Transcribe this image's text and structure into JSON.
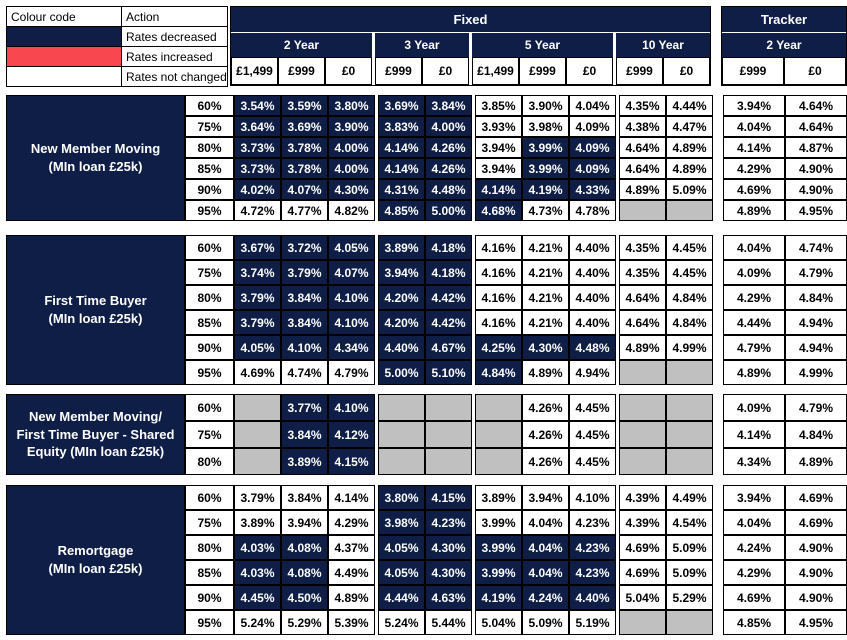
{
  "legend": {
    "col1_header": "Colour code",
    "col2_header": "Action",
    "rows": [
      {
        "swatch": "decreased",
        "label": "Rates decreased"
      },
      {
        "swatch": "increased",
        "label": "Rates increased"
      },
      {
        "swatch": "not_changed",
        "label": "Rates not changed"
      }
    ]
  },
  "colors": {
    "decreased": "#0E1E46",
    "increased": "#F8474F",
    "not_changed": "#FFFFFF",
    "not_available": "#C0C0C0"
  },
  "header": {
    "fixed_label": "Fixed",
    "tracker_label": "Tracker",
    "tracker_year": "2 Year",
    "fixed_groups": [
      {
        "label": "2 Year",
        "fees": [
          "£1,499",
          "£999",
          "£0"
        ]
      },
      {
        "label": "3 Year",
        "fees": [
          "£999",
          "£0"
        ]
      },
      {
        "label": "5 Year",
        "fees": [
          "£1,499",
          "£999",
          "£0"
        ]
      },
      {
        "label": "10 Year",
        "fees": [
          "£999",
          "£0"
        ]
      }
    ],
    "tracker_fees": [
      "£999",
      "£0"
    ]
  },
  "blocks": [
    {
      "id": "new-member-moving",
      "label_lines": [
        "New Member Moving",
        "(MIn loan £25k)"
      ],
      "rows": [
        {
          "ltv": "60%",
          "fixed": [
            "d3.54%",
            "d3.59%",
            "d3.80%",
            "d3.69%",
            "d3.84%",
            "n3.85%",
            "n3.90%",
            "n4.04%",
            "n4.35%",
            "n4.44%"
          ],
          "tracker": [
            "n3.94%",
            "n4.64%"
          ]
        },
        {
          "ltv": "75%",
          "fixed": [
            "d3.64%",
            "d3.69%",
            "d3.90%",
            "d3.83%",
            "d4.00%",
            "n3.93%",
            "n3.98%",
            "n4.09%",
            "n4.38%",
            "n4.47%"
          ],
          "tracker": [
            "n4.04%",
            "n4.64%"
          ]
        },
        {
          "ltv": "80%",
          "fixed": [
            "d3.73%",
            "d3.78%",
            "d4.00%",
            "d4.14%",
            "d4.26%",
            "n3.94%",
            "d3.99%",
            "d4.09%",
            "n4.64%",
            "n4.89%"
          ],
          "tracker": [
            "n4.14%",
            "n4.87%"
          ]
        },
        {
          "ltv": "85%",
          "fixed": [
            "d3.73%",
            "d3.78%",
            "d4.00%",
            "d4.14%",
            "d4.26%",
            "n3.94%",
            "d3.99%",
            "d4.09%",
            "n4.64%",
            "n4.89%"
          ],
          "tracker": [
            "n4.29%",
            "n4.90%"
          ]
        },
        {
          "ltv": "90%",
          "fixed": [
            "d4.02%",
            "d4.07%",
            "d4.30%",
            "d4.31%",
            "d4.48%",
            "d4.14%",
            "d4.19%",
            "d4.33%",
            "n4.89%",
            "n5.09%"
          ],
          "tracker": [
            "n4.69%",
            "n4.90%"
          ]
        },
        {
          "ltv": "95%",
          "fixed": [
            "n4.72%",
            "n4.77%",
            "n4.82%",
            "d4.85%",
            "d5.00%",
            "d4.68%",
            "n4.73%",
            "n4.78%",
            "g",
            "g"
          ],
          "tracker": [
            "n4.89%",
            "n4.95%"
          ]
        }
      ]
    },
    {
      "id": "first-time-buyer",
      "label_lines": [
        "First Time Buyer",
        "(MIn loan £25k)"
      ],
      "rows": [
        {
          "ltv": "60%",
          "fixed": [
            "d3.67%",
            "d3.72%",
            "d4.05%",
            "d3.89%",
            "d4.18%",
            "n4.16%",
            "n4.21%",
            "n4.40%",
            "n4.35%",
            "n4.45%"
          ],
          "tracker": [
            "n4.04%",
            "n4.74%"
          ]
        },
        {
          "ltv": "75%",
          "fixed": [
            "d3.74%",
            "d3.79%",
            "d4.07%",
            "d3.94%",
            "d4.18%",
            "n4.16%",
            "n4.21%",
            "n4.40%",
            "n4.35%",
            "n4.45%"
          ],
          "tracker": [
            "n4.09%",
            "n4.79%"
          ]
        },
        {
          "ltv": "80%",
          "fixed": [
            "d3.79%",
            "d3.84%",
            "d4.10%",
            "d4.20%",
            "d4.42%",
            "n4.16%",
            "n4.21%",
            "n4.40%",
            "n4.64%",
            "n4.84%"
          ],
          "tracker": [
            "n4.29%",
            "n4.84%"
          ]
        },
        {
          "ltv": "85%",
          "fixed": [
            "d3.79%",
            "d3.84%",
            "d4.10%",
            "d4.20%",
            "d4.42%",
            "n4.16%",
            "n4.21%",
            "n4.40%",
            "n4.64%",
            "n4.84%"
          ],
          "tracker": [
            "n4.44%",
            "n4.94%"
          ]
        },
        {
          "ltv": "90%",
          "fixed": [
            "d4.05%",
            "d4.10%",
            "d4.34%",
            "d4.40%",
            "d4.67%",
            "d4.25%",
            "d4.30%",
            "d4.48%",
            "n4.89%",
            "n4.99%"
          ],
          "tracker": [
            "n4.79%",
            "n4.94%"
          ]
        },
        {
          "ltv": "95%",
          "fixed": [
            "n4.69%",
            "n4.74%",
            "n4.79%",
            "d5.00%",
            "d5.10%",
            "d4.84%",
            "n4.89%",
            "n4.94%",
            "g",
            "g"
          ],
          "tracker": [
            "n4.89%",
            "n4.99%"
          ]
        }
      ]
    },
    {
      "id": "shared-equity",
      "label_lines": [
        "New Member Moving/",
        "First Time Buyer - Shared",
        "Equity (MIn loan £25k)"
      ],
      "rows": [
        {
          "ltv": "60%",
          "fixed": [
            "g",
            "d3.77%",
            "d4.10%",
            "g",
            "g",
            "g",
            "n4.26%",
            "n4.45%",
            "g",
            "g"
          ],
          "tracker": [
            "n4.09%",
            "n4.79%"
          ]
        },
        {
          "ltv": "75%",
          "fixed": [
            "g",
            "d3.84%",
            "d4.12%",
            "g",
            "g",
            "g",
            "n4.26%",
            "n4.45%",
            "g",
            "g"
          ],
          "tracker": [
            "n4.14%",
            "n4.84%"
          ]
        },
        {
          "ltv": "80%",
          "fixed": [
            "g",
            "d3.89%",
            "d4.15%",
            "g",
            "g",
            "g",
            "n4.26%",
            "n4.45%",
            "g",
            "g"
          ],
          "tracker": [
            "n4.34%",
            "n4.89%"
          ]
        }
      ]
    },
    {
      "id": "remortgage",
      "label_lines": [
        "Remortgage",
        "(MIn loan £25k)"
      ],
      "rows": [
        {
          "ltv": "60%",
          "fixed": [
            "n3.79%",
            "n3.84%",
            "n4.14%",
            "d3.80%",
            "d4.15%",
            "n3.89%",
            "n3.94%",
            "n4.10%",
            "n4.39%",
            "n4.49%"
          ],
          "tracker": [
            "n3.94%",
            "n4.69%"
          ]
        },
        {
          "ltv": "75%",
          "fixed": [
            "n3.89%",
            "n3.94%",
            "n4.29%",
            "d3.98%",
            "d4.23%",
            "n3.99%",
            "n4.04%",
            "n4.23%",
            "n4.39%",
            "n4.54%"
          ],
          "tracker": [
            "n4.04%",
            "n4.69%"
          ]
        },
        {
          "ltv": "80%",
          "fixed": [
            "d4.03%",
            "d4.08%",
            "n4.37%",
            "d4.05%",
            "d4.30%",
            "d3.99%",
            "d4.04%",
            "d4.23%",
            "n4.69%",
            "n5.09%"
          ],
          "tracker": [
            "n4.24%",
            "n4.90%"
          ]
        },
        {
          "ltv": "85%",
          "fixed": [
            "d4.03%",
            "d4.08%",
            "n4.49%",
            "d4.05%",
            "d4.30%",
            "d3.99%",
            "d4.04%",
            "d4.23%",
            "n4.69%",
            "n5.09%"
          ],
          "tracker": [
            "n4.29%",
            "n4.90%"
          ]
        },
        {
          "ltv": "90%",
          "fixed": [
            "d4.45%",
            "d4.50%",
            "n4.89%",
            "d4.44%",
            "d4.63%",
            "d4.19%",
            "d4.24%",
            "d4.40%",
            "n5.04%",
            "n5.29%"
          ],
          "tracker": [
            "n4.69%",
            "n4.90%"
          ]
        },
        {
          "ltv": "95%",
          "fixed": [
            "n5.24%",
            "n5.29%",
            "n5.39%",
            "n5.24%",
            "n5.44%",
            "n5.04%",
            "n5.09%",
            "n5.19%",
            "g",
            "g"
          ],
          "tracker": [
            "n4.85%",
            "n4.95%"
          ]
        }
      ]
    }
  ]
}
